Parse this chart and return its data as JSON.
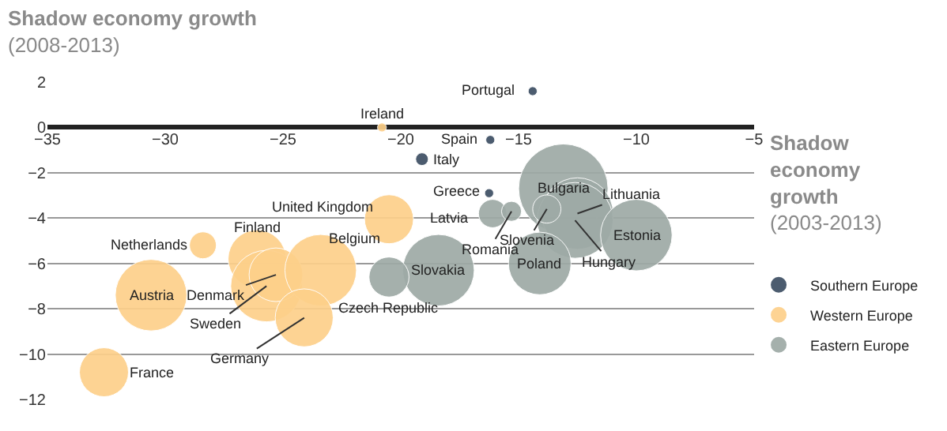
{
  "chart_data": {
    "type": "bubble",
    "xlabel": "Shadow economy growth (2003-2013)",
    "ylabel": "Shadow economy growth (2008-2013)",
    "xlim": [
      -35,
      -5
    ],
    "xticks": [
      -35,
      -30,
      -25,
      -20,
      -15,
      -10,
      -5
    ],
    "ylim": [
      -12,
      2
    ],
    "yticks": [
      -12,
      -10,
      -8,
      -6,
      -4,
      -2,
      0,
      2
    ],
    "grid": "y",
    "legend": "bottom right",
    "series": [
      {
        "name": "Southern Europe",
        "color": "#3d4f63",
        "x": [
          -14.4,
          -16.2,
          -19.1,
          -16.25
        ],
        "values": [
          1.6,
          -0.55,
          -1.4,
          -2.9
        ],
        "sizes": [
          0.01,
          0.01,
          0.02,
          0.01
        ]
      },
      {
        "name": "Western Europe",
        "color": "#fdd08a",
        "x": [
          -20.8,
          -20.5,
          -28.4,
          -30.6,
          -32.6,
          -26.1,
          -25.7,
          -25.3,
          -23.4,
          -24.1
        ],
        "values": [
          0.0,
          -4.05,
          -5.2,
          -7.4,
          -10.8,
          -5.8,
          -7.0,
          -6.5,
          -6.3,
          -8.4
        ],
        "sizes": [
          0.01,
          0.3,
          0.09,
          0.64,
          0.3,
          0.42,
          0.64,
          0.36,
          0.64,
          0.42
        ]
      },
      {
        "name": "Eastern Europe",
        "color": "#9eaaa6",
        "x": [
          -16.1,
          -15.3,
          -13.1,
          -12.5,
          -12.6,
          -10.0,
          -14.1,
          -18.4,
          -20.5,
          -13.8
        ],
        "values": [
          -3.8,
          -3.7,
          -2.7,
          -3.8,
          -4.1,
          -4.75,
          -6.0,
          -6.3,
          -6.6,
          -3.6
        ],
        "sizes": [
          0.1,
          0.05,
          1,
          0.64,
          0.72,
          0.64,
          0.49,
          0.64,
          0.2,
          0.1
        ]
      }
    ],
    "annotations": [
      {
        "text": "Portugal",
        "x": -14.4,
        "y": 1.6
      },
      {
        "text": "Spain",
        "x": -16.2,
        "y": -0.55
      },
      {
        "text": "Italy",
        "x": -19.1,
        "y": -1.4
      },
      {
        "text": "Greece",
        "x": -16.25,
        "y": -2.9
      },
      {
        "text": "Ireland",
        "x": -20.8,
        "y": 0.0
      },
      {
        "text": "United Kingdom",
        "x": -20.5,
        "y": -4.05
      },
      {
        "text": "Netherlands",
        "x": -28.4,
        "y": -5.2
      },
      {
        "text": "Austria",
        "x": -30.6,
        "y": -7.4
      },
      {
        "text": "France",
        "x": -32.6,
        "y": -10.8
      },
      {
        "text": "Finland",
        "x": -26.1,
        "y": -5.8
      },
      {
        "text": "Sweden",
        "x": -25.7,
        "y": -7.0
      },
      {
        "text": "Denmark",
        "x": -25.3,
        "y": -6.5
      },
      {
        "text": "Belgium",
        "x": -23.4,
        "y": -6.3
      },
      {
        "text": "Germany",
        "x": -24.1,
        "y": -8.4
      },
      {
        "text": "Latvia",
        "x": -16.1,
        "y": -3.8
      },
      {
        "text": "Romania",
        "x": -15.3,
        "y": -3.7
      },
      {
        "text": "Bulgaria",
        "x": -13.1,
        "y": -2.7
      },
      {
        "text": "Slovenia",
        "x": -13.8,
        "y": -3.6
      },
      {
        "text": "Lithuania",
        "x": -12.5,
        "y": -3.8
      },
      {
        "text": "Hungary",
        "x": -12.6,
        "y": -4.1
      },
      {
        "text": "Estonia",
        "x": -10.0,
        "y": -4.75
      },
      {
        "text": "Poland",
        "x": -14.1,
        "y": -6.0
      },
      {
        "text": "Slovakia",
        "x": -18.4,
        "y": -6.3
      },
      {
        "text": "Czech Republic",
        "x": -20.5,
        "y": -6.6
      }
    ]
  }
}
